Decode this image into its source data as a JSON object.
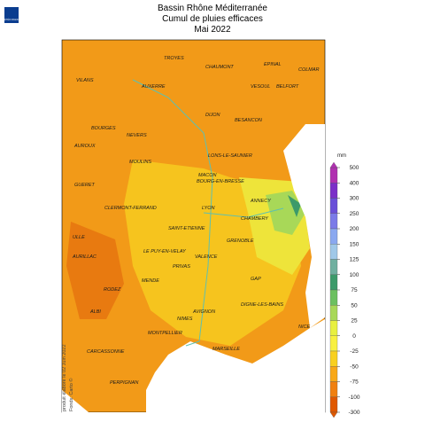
{
  "header": {
    "logo": "MÉTÉO FRANCE",
    "title": "Bassin Rhône Méditerranée",
    "subtitle": "Cumul de pluies efficaces",
    "period": "Mai 2022"
  },
  "cities": [
    "TROYES",
    "CHAUMONT",
    "EPINAL",
    "COLMAR",
    "VILANS",
    "AUXERRE",
    "VESOUL",
    "BELFORT",
    "DIJON",
    "BESANCON",
    "BOURGES",
    "NEVERS",
    "AUROUX",
    "MOULINS",
    "LONS-LE-SAUNIER",
    "MACON",
    "BOURG-EN-BRESSE",
    "GUERET",
    "ANNECY",
    "LYON",
    "CLERMONT-FERRAND",
    "CHAMBERY",
    "SAINT-ETIENNE",
    "GRENOBLE",
    "ULLE",
    "AURILLAC",
    "LE PUY-EN-VELAY",
    "VALENCE",
    "PRIVAS",
    "GAP",
    "RODEZ",
    "MENDE",
    "DIGNE-LES-BAINS",
    "ALBI",
    "AVIGNON",
    "NICE",
    "NIMES",
    "MONTPELLIER",
    "MARSEILLE",
    "CARCASSONNE",
    "PERPIGNAN"
  ],
  "legend": {
    "unit": "mm",
    "ticks": [
      500,
      400,
      300,
      250,
      200,
      150,
      125,
      100,
      75,
      50,
      25,
      0,
      -25,
      -50,
      -75,
      -100,
      -300
    ],
    "colors": [
      "#b030b0",
      "#7b2fc8",
      "#6a4fd8",
      "#7b7be8",
      "#8aa8f0",
      "#a0c8e8",
      "#70b0a0",
      "#3c9a6a",
      "#6cc060",
      "#a8d858",
      "#e8f040",
      "#f8f040",
      "#f8d020",
      "#f8a818",
      "#f08010",
      "#e05800"
    ]
  },
  "footer": {
    "credit": "Fonds: Carto ©",
    "produced": "produit élaboré le 02 Juin 2022"
  }
}
